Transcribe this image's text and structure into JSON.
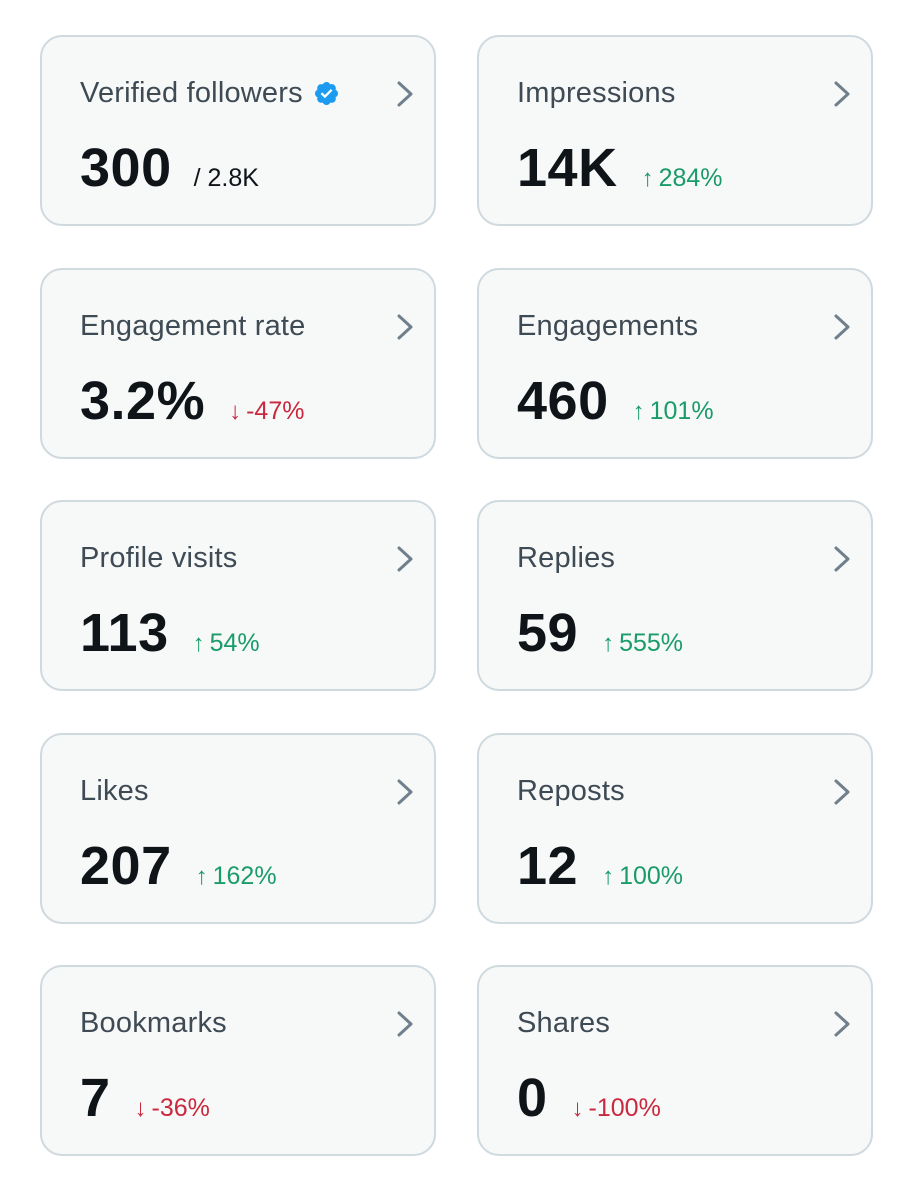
{
  "colors": {
    "card_bg": "#f7f8f8",
    "card_border": "#cfd9de",
    "label": "#3e4a54",
    "value": "#0f1419",
    "up": "#1a9b6a",
    "down": "#c9283e",
    "verified": "#1d9bf0",
    "chevron": "#536471"
  },
  "cards": [
    {
      "label": "Verified followers",
      "value": "300",
      "sub": "/ 2.8K",
      "change": "",
      "direction": "",
      "icon": "verified-badge-icon"
    },
    {
      "label": "Impressions",
      "value": "14K",
      "sub": "",
      "change": "284%",
      "direction": "up"
    },
    {
      "label": "Engagement rate",
      "value": "3.2%",
      "sub": "",
      "change": "-47%",
      "direction": "down"
    },
    {
      "label": "Engagements",
      "value": "460",
      "sub": "",
      "change": "101%",
      "direction": "up"
    },
    {
      "label": "Profile visits",
      "value": "113",
      "sub": "",
      "change": "54%",
      "direction": "up"
    },
    {
      "label": "Replies",
      "value": "59",
      "sub": "",
      "change": "555%",
      "direction": "up"
    },
    {
      "label": "Likes",
      "value": "207",
      "sub": "",
      "change": "162%",
      "direction": "up"
    },
    {
      "label": "Reposts",
      "value": "12",
      "sub": "",
      "change": "100%",
      "direction": "up"
    },
    {
      "label": "Bookmarks",
      "value": "7",
      "sub": "",
      "change": "-36%",
      "direction": "down"
    },
    {
      "label": "Shares",
      "value": "0",
      "sub": "",
      "change": "-100%",
      "direction": "down"
    }
  ],
  "arrows": {
    "up": "↑",
    "down": "↓"
  }
}
